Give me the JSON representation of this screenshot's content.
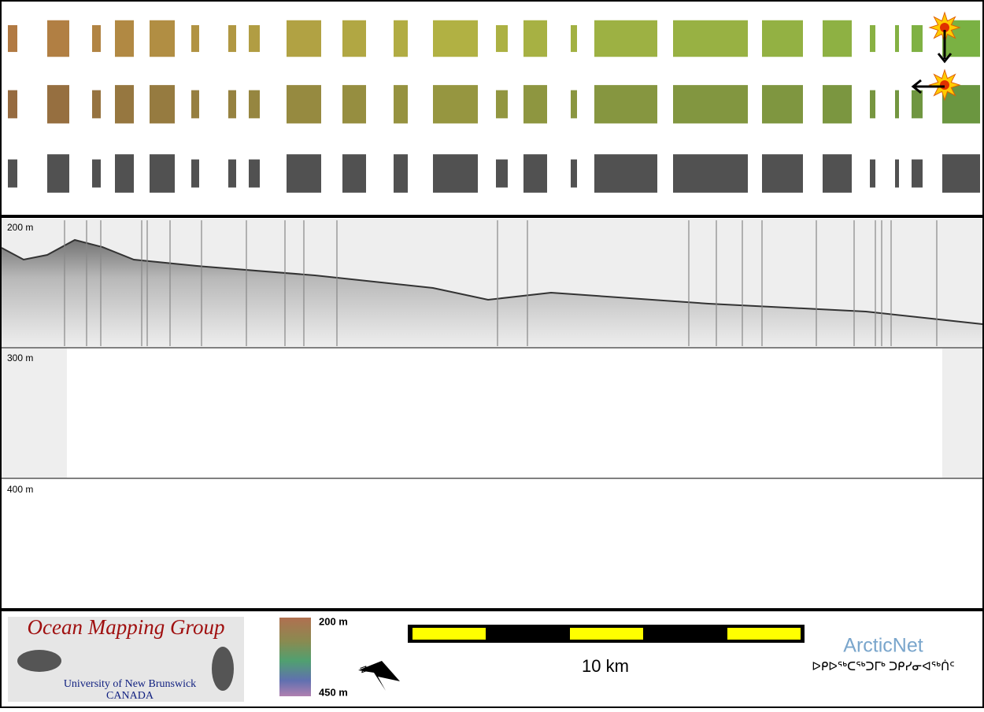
{
  "profile": {
    "depth_labels": [
      "200 m",
      "300 m",
      "400 m"
    ]
  },
  "footer": {
    "logo_title": "Ocean Mapping Group",
    "logo_university": "University of New Brunswick",
    "logo_country": "CANADA",
    "colorbar_top": "200 m",
    "colorbar_bottom": "450 m",
    "north_letter": "N",
    "scale_label": "10 km",
    "partner": "ArcticNet",
    "partner_inuktitut": "ᐅᑭᐅᖅᑕᖅᑐᒥᒃ ᑐᑭᓯᓂᐊᖅᑏᑦ"
  }
}
